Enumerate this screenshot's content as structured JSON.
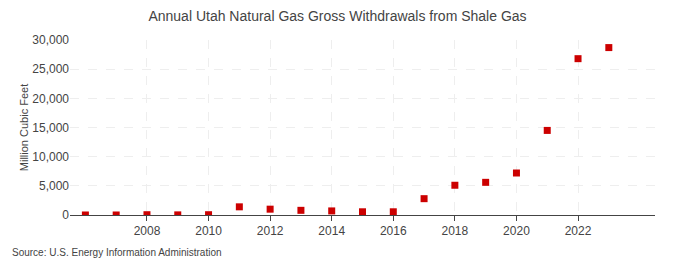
{
  "chart_data": {
    "type": "scatter",
    "title": "Annual Utah Natural Gas Gross Withdrawals from Shale Gas",
    "ylabel": "Million Cubic Feet",
    "annotations": [
      "Source: U.S. Energy Information Administration"
    ],
    "x": [
      2006,
      2007,
      2008,
      2009,
      2010,
      2011,
      2012,
      2013,
      2014,
      2015,
      2016,
      2017,
      2018,
      2019,
      2020,
      2021,
      2022,
      2023
    ],
    "values": [
      1,
      2,
      50,
      20,
      50,
      1400,
      1000,
      800,
      700,
      550,
      550,
      2800,
      5100,
      5600,
      7200,
      14500,
      26800,
      28700
    ],
    "color": "#cc0000",
    "marker": "square",
    "xlim": [
      2005.5,
      2024.5
    ],
    "xticks": [
      2008,
      2010,
      2012,
      2014,
      2016,
      2018,
      2020,
      2022
    ],
    "ylim": [
      0,
      30000
    ],
    "yticks": [
      0,
      {
        "value": 5000,
        "label": "5,000"
      },
      {
        "value": 10000,
        "label": "10,000"
      },
      {
        "value": 15000,
        "label": "15,000"
      },
      {
        "value": 20000,
        "label": "20,000"
      },
      {
        "value": 25000,
        "label": "25,000"
      },
      {
        "value": 30000,
        "label": "30,000"
      }
    ],
    "grid": true
  }
}
